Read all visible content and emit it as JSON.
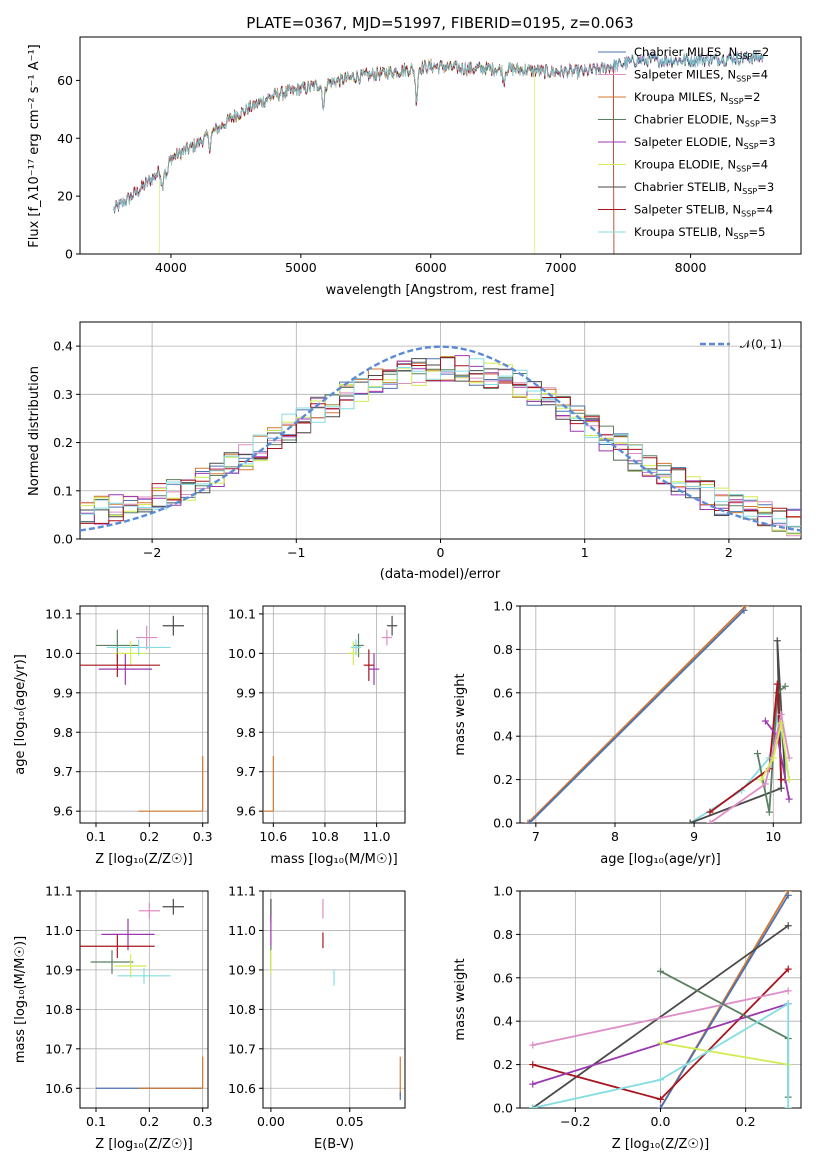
{
  "title": "PLATE=0367, MJD=51997, FIBERID=0195, z=0.063",
  "colors": {
    "chabrier_miles": "#4c72b0",
    "salpeter_miles": "#dd8ec6",
    "kroupa_miles": "#d4782e",
    "chabrier_elodie": "#5b8061",
    "salpeter_elodie": "#9b38b0",
    "kroupa_elodie": "#d2ec54",
    "chabrier_stelib": "#4a4a4a",
    "salpeter_stelib": "#a8151e",
    "kroupa_stelib": "#84dde2",
    "gauss": "#5b8bd6",
    "grid": "#b0b0b0"
  },
  "panels": {
    "spectrum": {
      "xlabel": "wavelength [Angstrom, rest frame]",
      "ylabel": "Flux [f_λ10⁻¹⁷ erg cm⁻² s⁻¹ A⁻¹]",
      "xticks": [
        "4000",
        "5000",
        "6000",
        "7000",
        "8000"
      ],
      "yticks": [
        "0",
        "20",
        "40",
        "60"
      ]
    },
    "residuals": {
      "xlabel": "(data-model)/error",
      "ylabel": "Normed distribution",
      "xticks": [
        "−2",
        "−1",
        "0",
        "1",
        "2"
      ],
      "yticks": [
        "0.0",
        "0.1",
        "0.2",
        "0.3",
        "0.4"
      ],
      "legend": "𝒩(0, 1)"
    },
    "age_Z": {
      "xlabel": "Z [log₁₀(Z/Z☉)]",
      "ylabel": "age  [log₁₀(age/yr)]",
      "xticks": [
        "0.1",
        "0.2",
        "0.3"
      ],
      "yticks": [
        "9.6",
        "9.7",
        "9.8",
        "9.9",
        "10.0",
        "10.1"
      ]
    },
    "age_mass": {
      "xlabel": "mass [log₁₀(M/M☉)]",
      "xticks": [
        "10.6",
        "10.8",
        "11.0"
      ],
      "yticks": [
        "9.6",
        "9.7",
        "9.8",
        "9.9",
        "10.0",
        "10.1"
      ]
    },
    "mw_age": {
      "xlabel": "age  [log₁₀(age/yr)]",
      "ylabel": "mass weight",
      "xticks": [
        "7",
        "8",
        "9",
        "10"
      ],
      "yticks": [
        "0.0",
        "0.2",
        "0.4",
        "0.6",
        "0.8",
        "1.0"
      ]
    },
    "mass_Z": {
      "xlabel": "Z [log₁₀(Z/Z☉)]",
      "ylabel": "mass [log₁₀(M/M☉)]",
      "xticks": [
        "0.1",
        "0.2",
        "0.3"
      ],
      "yticks": [
        "10.6",
        "10.7",
        "10.8",
        "10.9",
        "11.0",
        "11.1"
      ]
    },
    "mass_ebv": {
      "xlabel": "E(B-V)",
      "xticks": [
        "0.00",
        "0.05"
      ],
      "yticks": [
        "10.6",
        "10.7",
        "10.8",
        "10.9",
        "11.0",
        "11.1"
      ]
    },
    "mw_Z": {
      "xlabel": "Z [log₁₀(Z/Z☉)]",
      "ylabel": "mass weight",
      "xticks": [
        "−0.2",
        "0.0",
        "0.2"
      ],
      "yticks": [
        "0.0",
        "0.2",
        "0.4",
        "0.6",
        "0.8",
        "1.0"
      ]
    }
  },
  "chart_data": [
    {
      "type": "line",
      "panel": "spectrum",
      "xlim": [
        3300,
        8850
      ],
      "ylim": [
        0,
        75
      ],
      "legend_position": "right",
      "series": [
        {
          "name": "Chabrier MILES, N_SSP=2",
          "key": "chabrier_miles",
          "nssp": "2",
          "base": "Chabrier MILES"
        },
        {
          "name": "Salpeter MILES, N_SSP=4",
          "key": "salpeter_miles",
          "nssp": "4",
          "base": "Salpeter MILES"
        },
        {
          "name": "Kroupa MILES, N_SSP=2",
          "key": "kroupa_miles",
          "nssp": "2",
          "base": "Kroupa MILES",
          "drop_at": 7410
        },
        {
          "name": "Chabrier ELODIE, N_SSP=3",
          "key": "chabrier_elodie",
          "nssp": "3",
          "base": "Chabrier ELODIE"
        },
        {
          "name": "Salpeter ELODIE, N_SSP=3",
          "key": "salpeter_elodie",
          "nssp": "3",
          "base": "Salpeter ELODIE"
        },
        {
          "name": "Kroupa ELODIE, N_SSP=4",
          "key": "kroupa_elodie",
          "nssp": "4",
          "base": "Kroupa ELODIE",
          "drop_at": 6800,
          "start": 3910
        },
        {
          "name": "Chabrier STELIB, N_SSP=3",
          "key": "chabrier_stelib",
          "nssp": "3",
          "base": "Chabrier STELIB"
        },
        {
          "name": "Salpeter STELIB, N_SSP=4",
          "key": "salpeter_stelib",
          "nssp": "4",
          "base": "Salpeter STELIB",
          "drop_at": 7410
        },
        {
          "name": "Kroupa STELIB, N_SSP=5",
          "key": "kroupa_stelib",
          "nssp": "5",
          "base": "Kroupa STELIB"
        }
      ],
      "continuum": {
        "x": [
          3550,
          3700,
          3900,
          4000,
          4200,
          4500,
          4800,
          5100,
          5400,
          5700,
          6000,
          6300,
          6600,
          6900,
          7200,
          7600,
          8000,
          8500
        ],
        "y": [
          15,
          20,
          28,
          33,
          38,
          48,
          55,
          58,
          61,
          63,
          65,
          64,
          64,
          63,
          63,
          67,
          67,
          68
        ]
      },
      "absorption_lines": [
        {
          "x": 3934,
          "depth": 6
        },
        {
          "x": 3969,
          "depth": 5
        },
        {
          "x": 4300,
          "depth": 4
        },
        {
          "x": 5175,
          "depth": 8
        },
        {
          "x": 5890,
          "depth": 11
        },
        {
          "x": 6563,
          "depth": 4
        }
      ]
    },
    {
      "type": "histogram",
      "panel": "residuals",
      "xlim": [
        -2.5,
        2.5
      ],
      "ylim": [
        0,
        0.45
      ],
      "bin_width": 0.1,
      "envelope": {
        "x": [
          -2.5,
          -2.0,
          -1.5,
          -1.0,
          -0.5,
          0.0,
          0.5,
          1.0,
          1.5,
          2.0,
          2.5
        ],
        "y": [
          0.05,
          0.08,
          0.14,
          0.24,
          0.32,
          0.36,
          0.33,
          0.24,
          0.14,
          0.07,
          0.03
        ]
      },
      "gaussian": {
        "mu": 0,
        "sigma": 1,
        "label": "𝒩(0, 1)"
      }
    },
    {
      "type": "scatter",
      "panel": "age_Z",
      "xlim": [
        0.07,
        0.31
      ],
      "ylim": [
        9.57,
        10.12
      ],
      "points": [
        {
          "key": "chabrier_miles",
          "x": 0.15,
          "y": 9.6,
          "xerr": 0.0,
          "yerr": 0.0
        },
        {
          "key": "kroupa_miles",
          "x": 0.3,
          "y": 9.6,
          "xerr": 0.12,
          "yerr": 0.14,
          "asym": true
        },
        {
          "key": "salpeter_miles",
          "x": 0.195,
          "y": 10.04,
          "xerr": 0.02,
          "yerr": 0.03
        },
        {
          "key": "chabrier_elodie",
          "x": 0.14,
          "y": 10.02,
          "xerr": 0.04,
          "yerr": 0.04
        },
        {
          "key": "salpeter_elodie",
          "x": 0.155,
          "y": 9.96,
          "xerr": 0.05,
          "yerr": 0.04
        },
        {
          "key": "kroupa_elodie",
          "x": 0.165,
          "y": 10.0,
          "xerr": 0.03,
          "yerr": 0.03
        },
        {
          "key": "chabrier_stelib",
          "x": 0.245,
          "y": 10.07,
          "xerr": 0.02,
          "yerr": 0.025
        },
        {
          "key": "salpeter_stelib",
          "x": 0.14,
          "y": 9.97,
          "xerr": 0.08,
          "yerr": 0.03
        },
        {
          "key": "kroupa_stelib",
          "x": 0.18,
          "y": 10.015,
          "xerr": 0.06,
          "yerr": 0.02
        }
      ]
    },
    {
      "type": "scatter",
      "panel": "age_mass",
      "xlim": [
        10.56,
        11.11
      ],
      "ylim": [
        9.57,
        10.12
      ],
      "points": [
        {
          "key": "chabrier_miles",
          "x": 10.6,
          "y": 9.6,
          "xerr": 0.0,
          "yerr": 0.0
        },
        {
          "key": "kroupa_miles",
          "x": 10.6,
          "y": 9.6,
          "xerr": 0.08,
          "yerr": 0.14,
          "asym": true
        },
        {
          "key": "salpeter_miles",
          "x": 11.04,
          "y": 10.04,
          "xerr": 0.02,
          "yerr": 0.02
        },
        {
          "key": "chabrier_elodie",
          "x": 10.93,
          "y": 10.02,
          "xerr": 0.02,
          "yerr": 0.03
        },
        {
          "key": "salpeter_elodie",
          "x": 10.99,
          "y": 9.96,
          "xerr": 0.02,
          "yerr": 0.04
        },
        {
          "key": "kroupa_elodie",
          "x": 10.91,
          "y": 10.0,
          "xerr": 0.02,
          "yerr": 0.03
        },
        {
          "key": "chabrier_stelib",
          "x": 11.06,
          "y": 10.07,
          "xerr": 0.02,
          "yerr": 0.025
        },
        {
          "key": "salpeter_stelib",
          "x": 10.97,
          "y": 9.97,
          "xerr": 0.02,
          "yerr": 0.04
        },
        {
          "key": "kroupa_stelib",
          "x": 10.92,
          "y": 10.015,
          "xerr": 0.02,
          "yerr": 0.02
        }
      ]
    },
    {
      "type": "line",
      "panel": "mw_age",
      "xlim": [
        6.8,
        10.35
      ],
      "ylim": [
        0,
        1
      ],
      "series": [
        {
          "key": "kroupa_miles",
          "x": [
            6.9,
            9.65
          ],
          "y": [
            0.0,
            1.0
          ]
        },
        {
          "key": "chabrier_miles",
          "x": [
            6.92,
            9.63
          ],
          "y": [
            0.0,
            0.98
          ]
        },
        {
          "key": "kroupa_stelib",
          "x": [
            8.95,
            9.6,
            9.95,
            10.05,
            10.1,
            10.2
          ],
          "y": [
            0.0,
            0.15,
            0.3,
            0.48,
            0.4,
            0.2
          ]
        },
        {
          "key": "chabrier_stelib",
          "x": [
            8.95,
            10.1,
            10.05,
            10.15
          ],
          "y": [
            0.0,
            0.16,
            0.84,
            0.2
          ]
        },
        {
          "key": "chabrier_elodie",
          "x": [
            9.8,
            9.95,
            10.05,
            10.15
          ],
          "y": [
            0.32,
            0.05,
            0.6,
            0.63
          ]
        },
        {
          "key": "salpeter_stelib",
          "x": [
            9.2,
            9.95,
            10.05,
            10.1,
            10.15
          ],
          "y": [
            0.05,
            0.25,
            0.64,
            0.2,
            0.2
          ]
        },
        {
          "key": "salpeter_elodie",
          "x": [
            9.9,
            10.05,
            10.2
          ],
          "y": [
            0.47,
            0.4,
            0.11
          ]
        },
        {
          "key": "salpeter_miles",
          "x": [
            9.2,
            9.9,
            10.1,
            10.2
          ],
          "y": [
            0.0,
            0.18,
            0.5,
            0.3
          ]
        },
        {
          "key": "kroupa_elodie",
          "x": [
            9.85,
            10.0,
            10.1,
            10.2
          ],
          "y": [
            0.2,
            0.3,
            0.46,
            0.2
          ]
        }
      ]
    },
    {
      "type": "scatter",
      "panel": "mass_Z",
      "xlim": [
        0.07,
        0.31
      ],
      "ylim": [
        10.55,
        11.1
      ],
      "points": [
        {
          "key": "chabrier_miles",
          "x": 0.2,
          "y": 10.6,
          "xerr": 0.1,
          "yerr": 0.0
        },
        {
          "key": "kroupa_miles",
          "x": 0.3,
          "y": 10.6,
          "xerr": 0.12,
          "yerr": 0.08,
          "asym": true
        },
        {
          "key": "salpeter_miles",
          "x": 0.2,
          "y": 11.05,
          "xerr": 0.02,
          "yerr": 0.02
        },
        {
          "key": "chabrier_elodie",
          "x": 0.13,
          "y": 10.92,
          "xerr": 0.04,
          "yerr": 0.03
        },
        {
          "key": "salpeter_elodie",
          "x": 0.16,
          "y": 10.99,
          "xerr": 0.05,
          "yerr": 0.04
        },
        {
          "key": "kroupa_elodie",
          "x": 0.165,
          "y": 10.91,
          "xerr": 0.03,
          "yerr": 0.03
        },
        {
          "key": "chabrier_stelib",
          "x": 0.245,
          "y": 11.06,
          "xerr": 0.02,
          "yerr": 0.02
        },
        {
          "key": "salpeter_stelib",
          "x": 0.14,
          "y": 10.96,
          "xerr": 0.07,
          "yerr": 0.03
        },
        {
          "key": "kroupa_stelib",
          "x": 0.19,
          "y": 10.885,
          "xerr": 0.05,
          "yerr": 0.02
        }
      ]
    },
    {
      "type": "scatter",
      "panel": "mass_ebv",
      "xlim": [
        -0.005,
        0.085
      ],
      "ylim": [
        10.55,
        11.1
      ],
      "points": [
        {
          "key": "chabrier_stelib",
          "x": 0.0,
          "y": 11.05,
          "xerr": 0,
          "yerr": 0.03
        },
        {
          "key": "salpeter_elodie",
          "x": 0.0,
          "y": 11.0,
          "xerr": 0,
          "yerr": 0.04
        },
        {
          "key": "chabrier_elodie",
          "x": 0.0,
          "y": 10.93,
          "xerr": 0,
          "yerr": 0.03
        },
        {
          "key": "kroupa_elodie",
          "x": 0.0,
          "y": 10.92,
          "xerr": 0,
          "yerr": 0.03
        },
        {
          "key": "salpeter_miles",
          "x": 0.033,
          "y": 11.055,
          "xerr": 0,
          "yerr": 0.025
        },
        {
          "key": "salpeter_stelib",
          "x": 0.033,
          "y": 10.975,
          "xerr": 0,
          "yerr": 0.02
        },
        {
          "key": "kroupa_stelib",
          "x": 0.04,
          "y": 10.88,
          "xerr": 0,
          "yerr": 0.02
        },
        {
          "key": "kroupa_miles",
          "x": 0.082,
          "y": 10.63,
          "xerr": 0,
          "yerr": 0.05
        },
        {
          "key": "chabrier_miles",
          "x": 0.082,
          "y": 10.58,
          "xerr": 0,
          "yerr": 0.01
        }
      ]
    },
    {
      "type": "line",
      "panel": "mw_Z",
      "xlim": [
        -0.33,
        0.33
      ],
      "ylim": [
        0,
        1
      ],
      "series": [
        {
          "key": "kroupa_miles",
          "x": [
            0.0,
            0.3
          ],
          "y": [
            0.0,
            1.0
          ]
        },
        {
          "key": "chabrier_miles",
          "x": [
            0.0,
            0.3
          ],
          "y": [
            0.0,
            0.98
          ]
        },
        {
          "key": "chabrier_stelib",
          "x": [
            -0.3,
            0.3
          ],
          "y": [
            0.0,
            0.84
          ]
        },
        {
          "key": "salpeter_stelib",
          "x": [
            -0.3,
            0.0,
            0.3
          ],
          "y": [
            0.2,
            0.04,
            0.64
          ]
        },
        {
          "key": "salpeter_miles",
          "x": [
            -0.3,
            0.3
          ],
          "y": [
            0.29,
            0.54
          ]
        },
        {
          "key": "salpeter_elodie",
          "x": [
            -0.3,
            0.3
          ],
          "y": [
            0.11,
            0.48
          ]
        },
        {
          "key": "chabrier_elodie",
          "x": [
            0.0,
            0.3,
            0.3
          ],
          "y": [
            0.63,
            0.32,
            0.05
          ]
        },
        {
          "key": "kroupa_elodie",
          "x": [
            0.0,
            0.3
          ],
          "y": [
            0.3,
            0.2
          ]
        },
        {
          "key": "kroupa_stelib",
          "x": [
            -0.3,
            0.0,
            0.3,
            0.3
          ],
          "y": [
            0.0,
            0.13,
            0.48,
            0.0
          ]
        }
      ]
    }
  ]
}
